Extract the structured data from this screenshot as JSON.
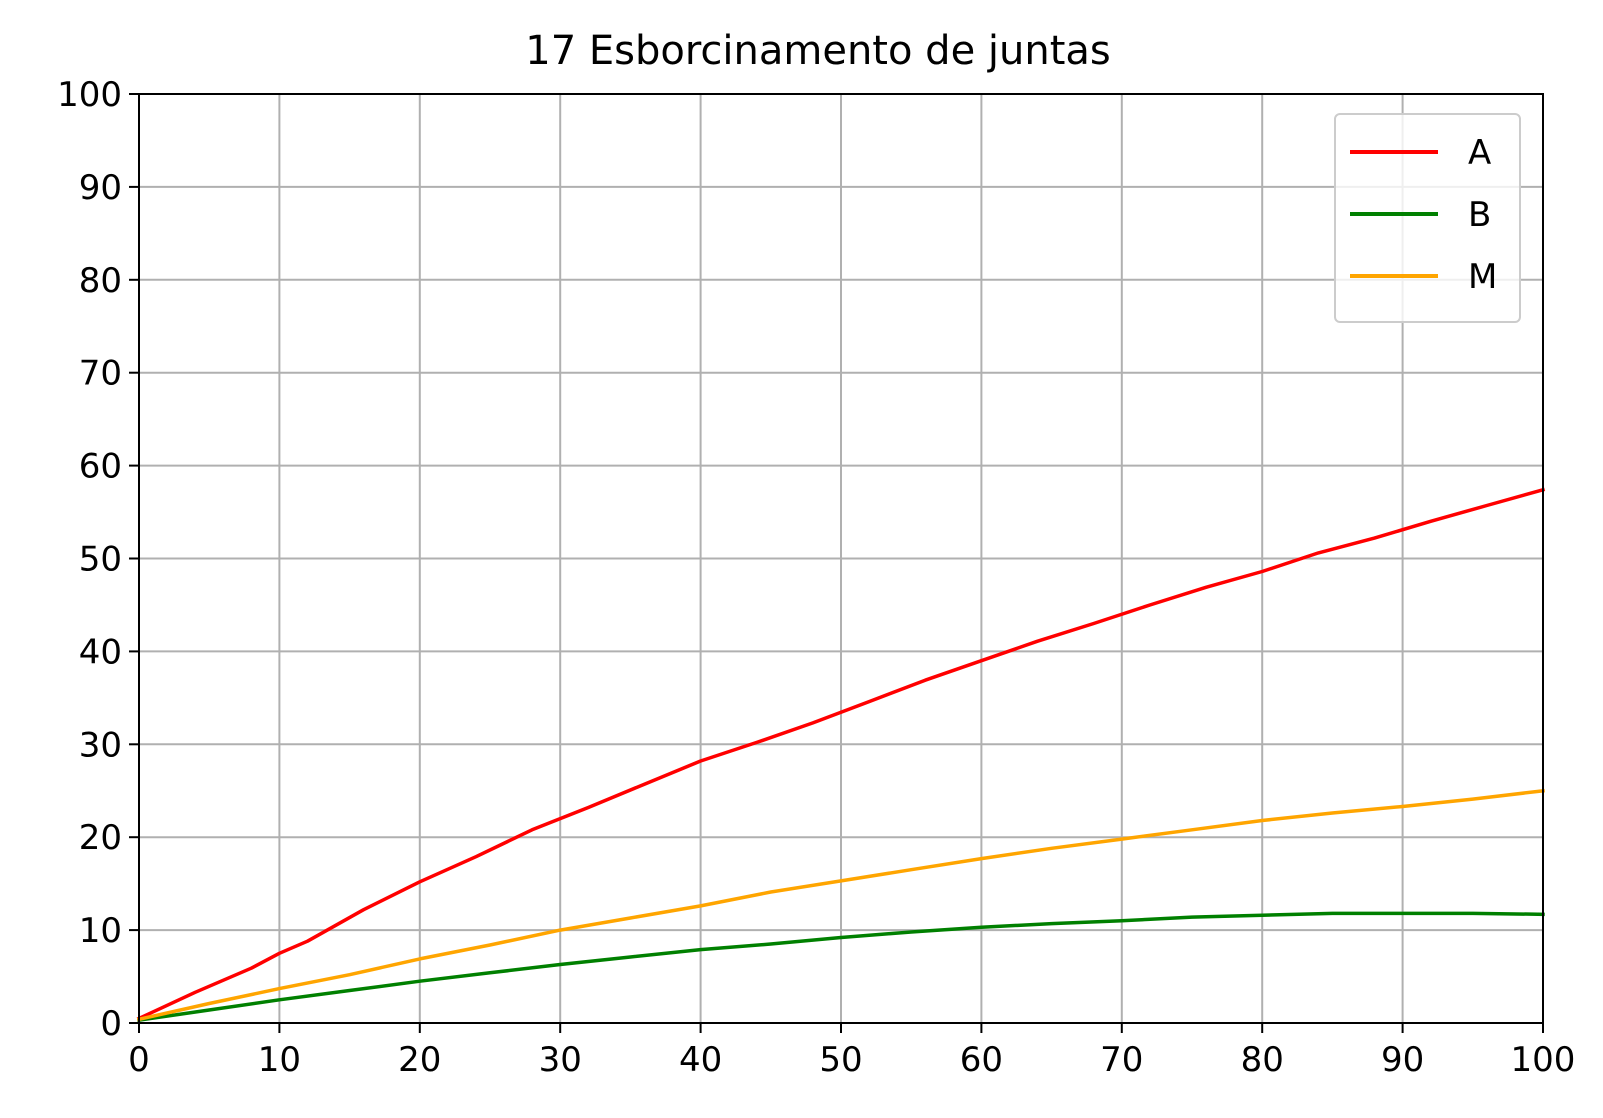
{
  "chart_data": {
    "type": "line",
    "title": "17 Esborcinamento de juntas",
    "xlabel": "",
    "ylabel": "",
    "xlim": [
      0,
      100
    ],
    "ylim": [
      0,
      100
    ],
    "xticks": [
      "0",
      "10",
      "20",
      "30",
      "40",
      "50",
      "60",
      "70",
      "80",
      "90",
      "100"
    ],
    "yticks": [
      "0",
      "10",
      "20",
      "30",
      "40",
      "50",
      "60",
      "70",
      "80",
      "90",
      "100"
    ],
    "grid": true,
    "legend_position": "top-right",
    "series": [
      {
        "name": "A",
        "color": "#ff0000",
        "x": [
          0,
          4,
          8,
          10,
          12,
          16,
          20,
          24,
          28,
          32,
          36,
          40,
          44,
          48,
          52,
          56,
          60,
          64,
          68,
          72,
          76,
          80,
          84,
          88,
          92,
          96,
          100
        ],
        "y": [
          0.5,
          3.3,
          5.9,
          7.5,
          8.8,
          12.2,
          15.2,
          17.9,
          20.8,
          23.2,
          25.7,
          28.2,
          30.2,
          32.3,
          34.6,
          36.9,
          39.0,
          41.1,
          43.0,
          45.0,
          46.9,
          48.6,
          50.6,
          52.2,
          54.0,
          55.7,
          57.4
        ]
      },
      {
        "name": "B",
        "color": "#008000",
        "x": [
          0,
          5,
          10,
          15,
          20,
          25,
          30,
          35,
          40,
          45,
          50,
          55,
          60,
          65,
          70,
          75,
          80,
          85,
          90,
          95,
          100
        ],
        "y": [
          0.3,
          1.4,
          2.5,
          3.5,
          4.5,
          5.4,
          6.3,
          7.1,
          7.9,
          8.5,
          9.2,
          9.8,
          10.3,
          10.7,
          11.0,
          11.4,
          11.6,
          11.8,
          11.8,
          11.8,
          11.7
        ]
      },
      {
        "name": "M",
        "color": "#ffa500",
        "x": [
          0,
          5,
          10,
          15,
          20,
          25,
          30,
          35,
          40,
          45,
          50,
          55,
          60,
          65,
          70,
          75,
          80,
          85,
          90,
          95,
          100
        ],
        "y": [
          0.4,
          2.1,
          3.7,
          5.2,
          6.9,
          8.4,
          10.0,
          11.3,
          12.6,
          14.1,
          15.3,
          16.5,
          17.7,
          18.8,
          19.8,
          20.8,
          21.8,
          22.6,
          23.3,
          24.1,
          25.0
        ]
      }
    ]
  }
}
